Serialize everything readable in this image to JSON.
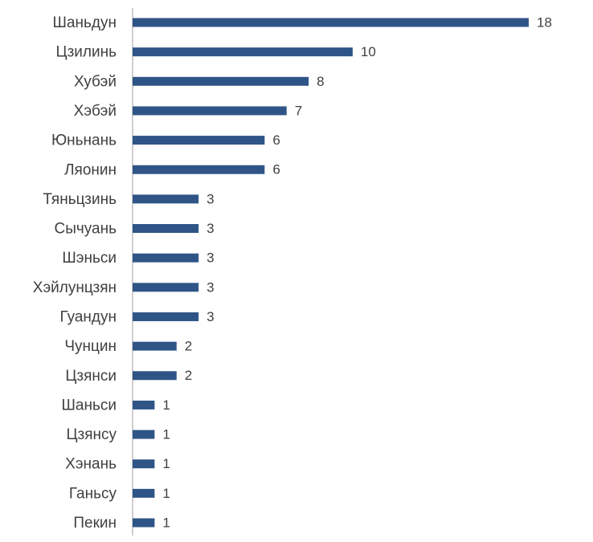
{
  "chart_data": {
    "type": "hbar",
    "categories": [
      "Шаньдун",
      "Цзилинь",
      "Хубэй",
      "Хэбэй",
      "Юньнань",
      "Ляонин",
      "Тяньцзинь",
      "Сычуань",
      "Шэньси",
      "Хэйлунцзян",
      "Гуандун",
      "Чунцин",
      "Цзянси",
      "Шаньси",
      "Цзянсу",
      "Хэнань",
      "Ганьсу",
      "Пекин"
    ],
    "values": [
      18,
      10,
      8,
      7,
      6,
      6,
      3,
      3,
      3,
      3,
      3,
      2,
      2,
      1,
      1,
      1,
      1,
      1
    ],
    "color": "#2f5587",
    "xlim": [
      0,
      18
    ]
  }
}
